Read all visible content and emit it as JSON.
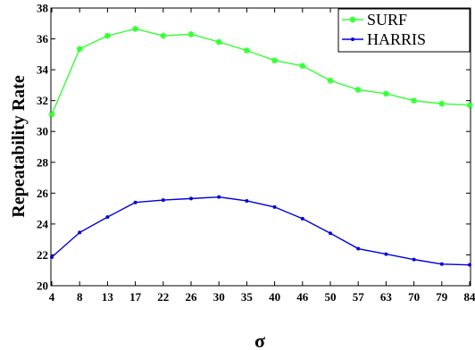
{
  "chart_data": {
    "type": "line",
    "title": "",
    "xlabel": "σ",
    "ylabel": "Repeatability Rate",
    "categories": [
      "4",
      "8",
      "13",
      "17",
      "22",
      "26",
      "30",
      "35",
      "40",
      "46",
      "50",
      "57",
      "63",
      "70",
      "79",
      "84"
    ],
    "ylim": [
      20,
      38
    ],
    "yticks": [
      20,
      22,
      24,
      26,
      28,
      30,
      32,
      34,
      36,
      38
    ],
    "grid": false,
    "legend_position": "top-right",
    "series": [
      {
        "name": "SURF",
        "color": "#33ff33",
        "marker": "asterisk",
        "values": [
          31.1,
          35.35,
          36.2,
          36.65,
          36.2,
          36.3,
          35.8,
          35.25,
          34.6,
          34.25,
          33.3,
          32.7,
          32.45,
          32.0,
          31.8,
          31.7
        ]
      },
      {
        "name": "HARRIS",
        "color": "#0000dd",
        "marker": "dot",
        "values": [
          21.85,
          23.45,
          24.45,
          25.4,
          25.55,
          25.65,
          25.75,
          25.5,
          25.1,
          24.35,
          23.4,
          22.4,
          22.05,
          21.7,
          21.4,
          21.35
        ]
      }
    ]
  }
}
